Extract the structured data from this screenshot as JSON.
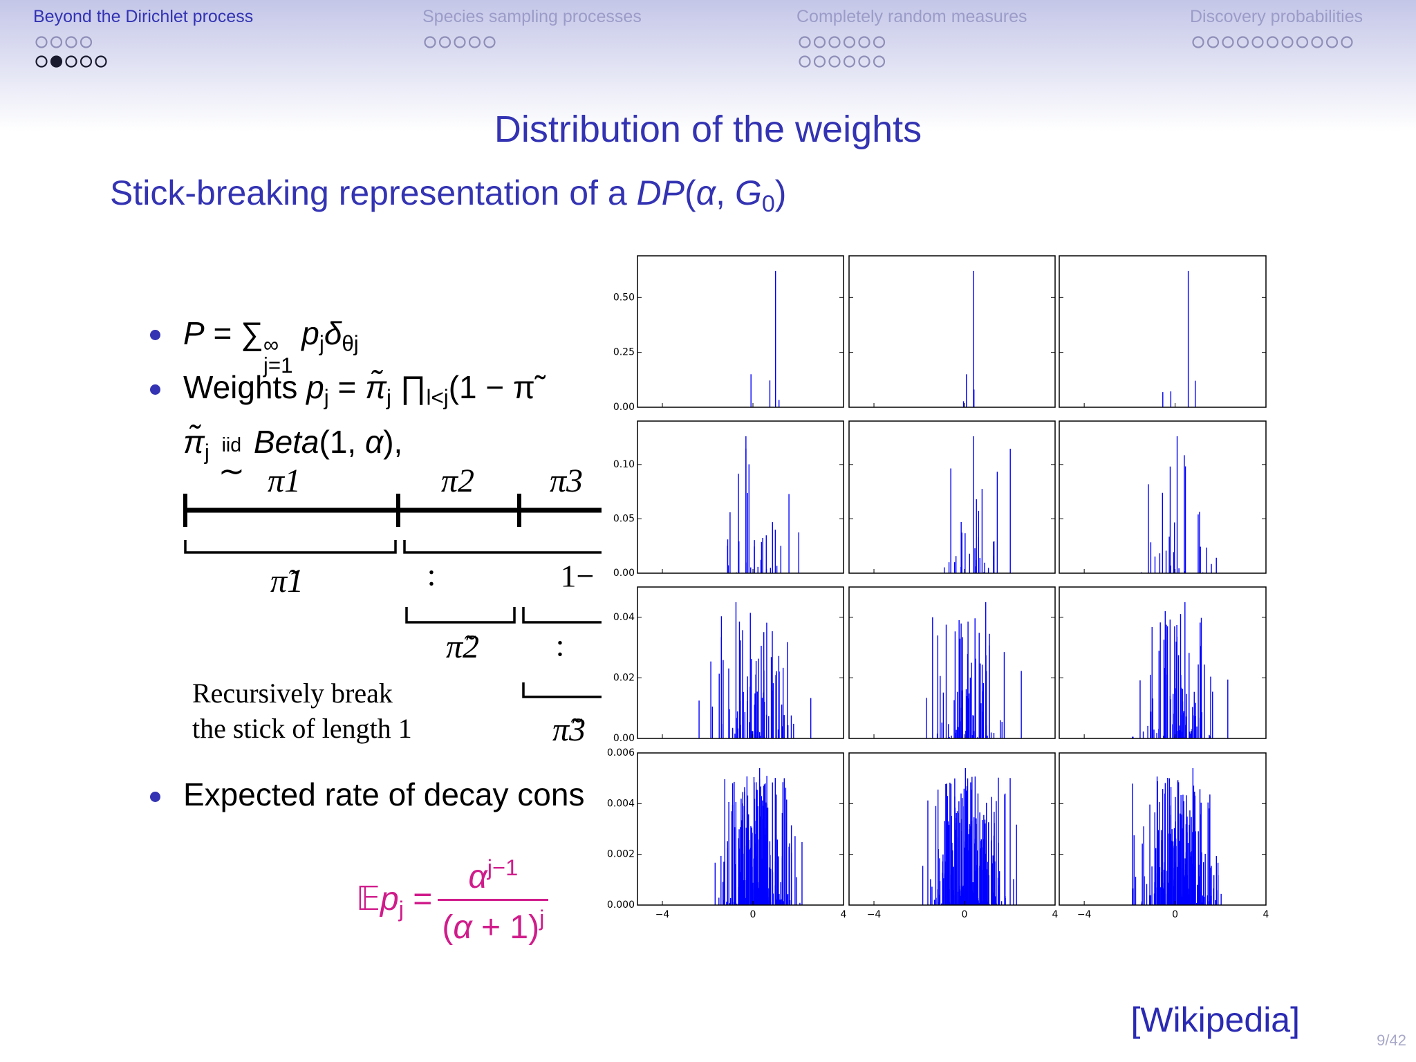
{
  "nav": {
    "sections": [
      "Beyond the Dirichlet process",
      "Species sampling processes",
      "Completely random measures",
      "Discovery probabilities"
    ]
  },
  "title": "Distribution of the weights",
  "subtitle": [
    {
      "text": "Stick-breaking representation of a "
    },
    {
      "text": "DP",
      "style": "i"
    },
    {
      "text": "("
    },
    {
      "text": "α",
      "style": "i"
    },
    {
      "text": ", "
    },
    {
      "text": "G",
      "style": "i"
    },
    {
      "text": "0",
      "style": "sub"
    },
    {
      "text": ")"
    }
  ],
  "bullets": [
    [
      {
        "text": "P",
        "style": "i"
      },
      {
        "text": " = ∑"
      },
      {
        "sup": "∞",
        "sub": "j=1"
      },
      {
        "text": " p",
        "style": "i"
      },
      {
        "text": "j",
        "style": "sub"
      },
      {
        "text": "δ",
        "style": "i"
      },
      {
        "text": "θj",
        "style": "sub"
      }
    ],
    [
      {
        "text": "Weights "
      },
      {
        "text": "p",
        "style": "i"
      },
      {
        "text": "j",
        "style": "sub"
      },
      {
        "text": " = "
      },
      {
        "text": "π̃",
        "style": "i"
      },
      {
        "text": "j",
        "style": "sub"
      },
      {
        "text": " ∏"
      },
      {
        "text": "l<j",
        "style": "sub"
      },
      {
        "text": "(1 − π̃"
      }
    ],
    [
      {
        "text": "π̃",
        "style": "i"
      },
      {
        "text": "j",
        "style": "sub"
      },
      {
        "text": " "
      },
      {
        "text": "∼",
        "over": "iid"
      },
      {
        "text": " "
      },
      {
        "text": "Beta",
        "style": "i"
      },
      {
        "text": "(1, "
      },
      {
        "text": "α",
        "style": "i"
      },
      {
        "text": "),"
      }
    ],
    [
      {
        "text": "Expected rate of decay cons"
      }
    ]
  ],
  "figure": {
    "pi1": "π1",
    "pi2": "π2",
    "pi3": "π3",
    "tpi1": "π̃1",
    "tpi2": "π̃2",
    "tpi3": "π̃3",
    "colon1": ":",
    "colon2": ":",
    "one_minus": "1−",
    "caption": [
      "Recursively break",
      "the stick of length 1"
    ]
  },
  "formula": {
    "lhs": [
      {
        "text": "𝔼"
      },
      {
        "text": "p",
        "style": "i"
      },
      {
        "text": "j",
        "style": "sub"
      },
      {
        "text": " = "
      }
    ],
    "numerator": [
      {
        "text": "α",
        "style": "i"
      },
      {
        "text": "j−1",
        "style": "sup"
      }
    ],
    "denominator": [
      {
        "text": "("
      },
      {
        "text": "α",
        "style": "i"
      },
      {
        "text": " + 1)"
      },
      {
        "text": "j",
        "style": "sup"
      }
    ]
  },
  "panels": {
    "rows": [
      {
        "ylim": [
          0,
          0.69
        ],
        "yticks": [
          {
            "value": 0,
            "label": "0.00"
          },
          {
            "value": 0.25,
            "label": "0.25"
          },
          {
            "value": 0.5,
            "label": "0.50"
          }
        ]
      },
      {
        "ylim": [
          0,
          0.14
        ],
        "yticks": [
          {
            "value": 0,
            "label": "0.00"
          },
          {
            "value": 0.05,
            "label": "0.05"
          },
          {
            "value": 0.1,
            "label": "0.10"
          }
        ]
      },
      {
        "ylim": [
          0,
          0.05
        ],
        "yticks": [
          {
            "value": 0,
            "label": "0.00"
          },
          {
            "value": 0.02,
            "label": "0.02"
          },
          {
            "value": 0.04,
            "label": "0.04"
          }
        ]
      },
      {
        "ylim": [
          0,
          0.006
        ],
        "yticks": [
          {
            "value": 0,
            "label": "0.000"
          },
          {
            "value": 0.002,
            "label": "0.002"
          },
          {
            "value": 0.004,
            "label": "0.004"
          },
          {
            "value": 0.006,
            "label": "0.006"
          }
        ]
      }
    ],
    "xlim": [
      -5.1,
      4
    ],
    "xticks": [
      {
        "value": -4,
        "label": "−4"
      },
      0,
      4
    ]
  },
  "citation": "[Wikipedia]",
  "page": "9/42"
}
